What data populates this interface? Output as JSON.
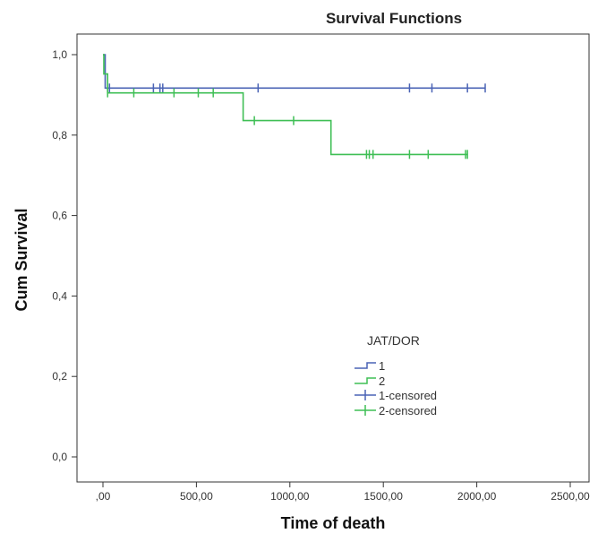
{
  "chart_data": {
    "type": "line",
    "title": "Survival Functions",
    "xlabel": "Time of death",
    "ylabel": "Cum Survival",
    "xlim": [
      0,
      2500
    ],
    "ylim": [
      0,
      1.0
    ],
    "x_ticks": [
      0,
      500,
      1000,
      1500,
      2000,
      2500
    ],
    "x_tick_labels": [
      ",00",
      "500,00",
      "1000,00",
      "1500,00",
      "2000,00",
      "2500,00"
    ],
    "y_ticks": [
      0,
      0.2,
      0.4,
      0.6,
      0.8,
      1.0
    ],
    "y_tick_labels": [
      "0,0",
      "0,2",
      "0,4",
      "0,6",
      "0,8",
      "1,0"
    ],
    "grid": false,
    "legend": {
      "title": "JAT/DOR",
      "placement": "bottom-right",
      "entries": [
        "1",
        "2",
        "1-censored",
        "2-censored"
      ]
    },
    "series": [
      {
        "name": "1",
        "color": "#4a63b5",
        "step": [
          [
            0,
            1.0
          ],
          [
            12,
            0.917
          ],
          [
            2045,
            0.917
          ]
        ],
        "censored_x": [
          35,
          270,
          305,
          320,
          830,
          1640,
          1760,
          1950,
          2045
        ]
      },
      {
        "name": "2",
        "color": "#3fbf55",
        "step": [
          [
            0,
            1.0
          ],
          [
            5,
            0.952
          ],
          [
            25,
            0.905
          ],
          [
            750,
            0.905
          ],
          [
            750,
            0.836
          ],
          [
            1220,
            0.836
          ],
          [
            1220,
            0.752
          ],
          [
            1950,
            0.752
          ]
        ],
        "censored_x": [
          25,
          165,
          380,
          510,
          590,
          810,
          1020,
          1410,
          1425,
          1445,
          1640,
          1740,
          1940,
          1950
        ]
      }
    ]
  }
}
